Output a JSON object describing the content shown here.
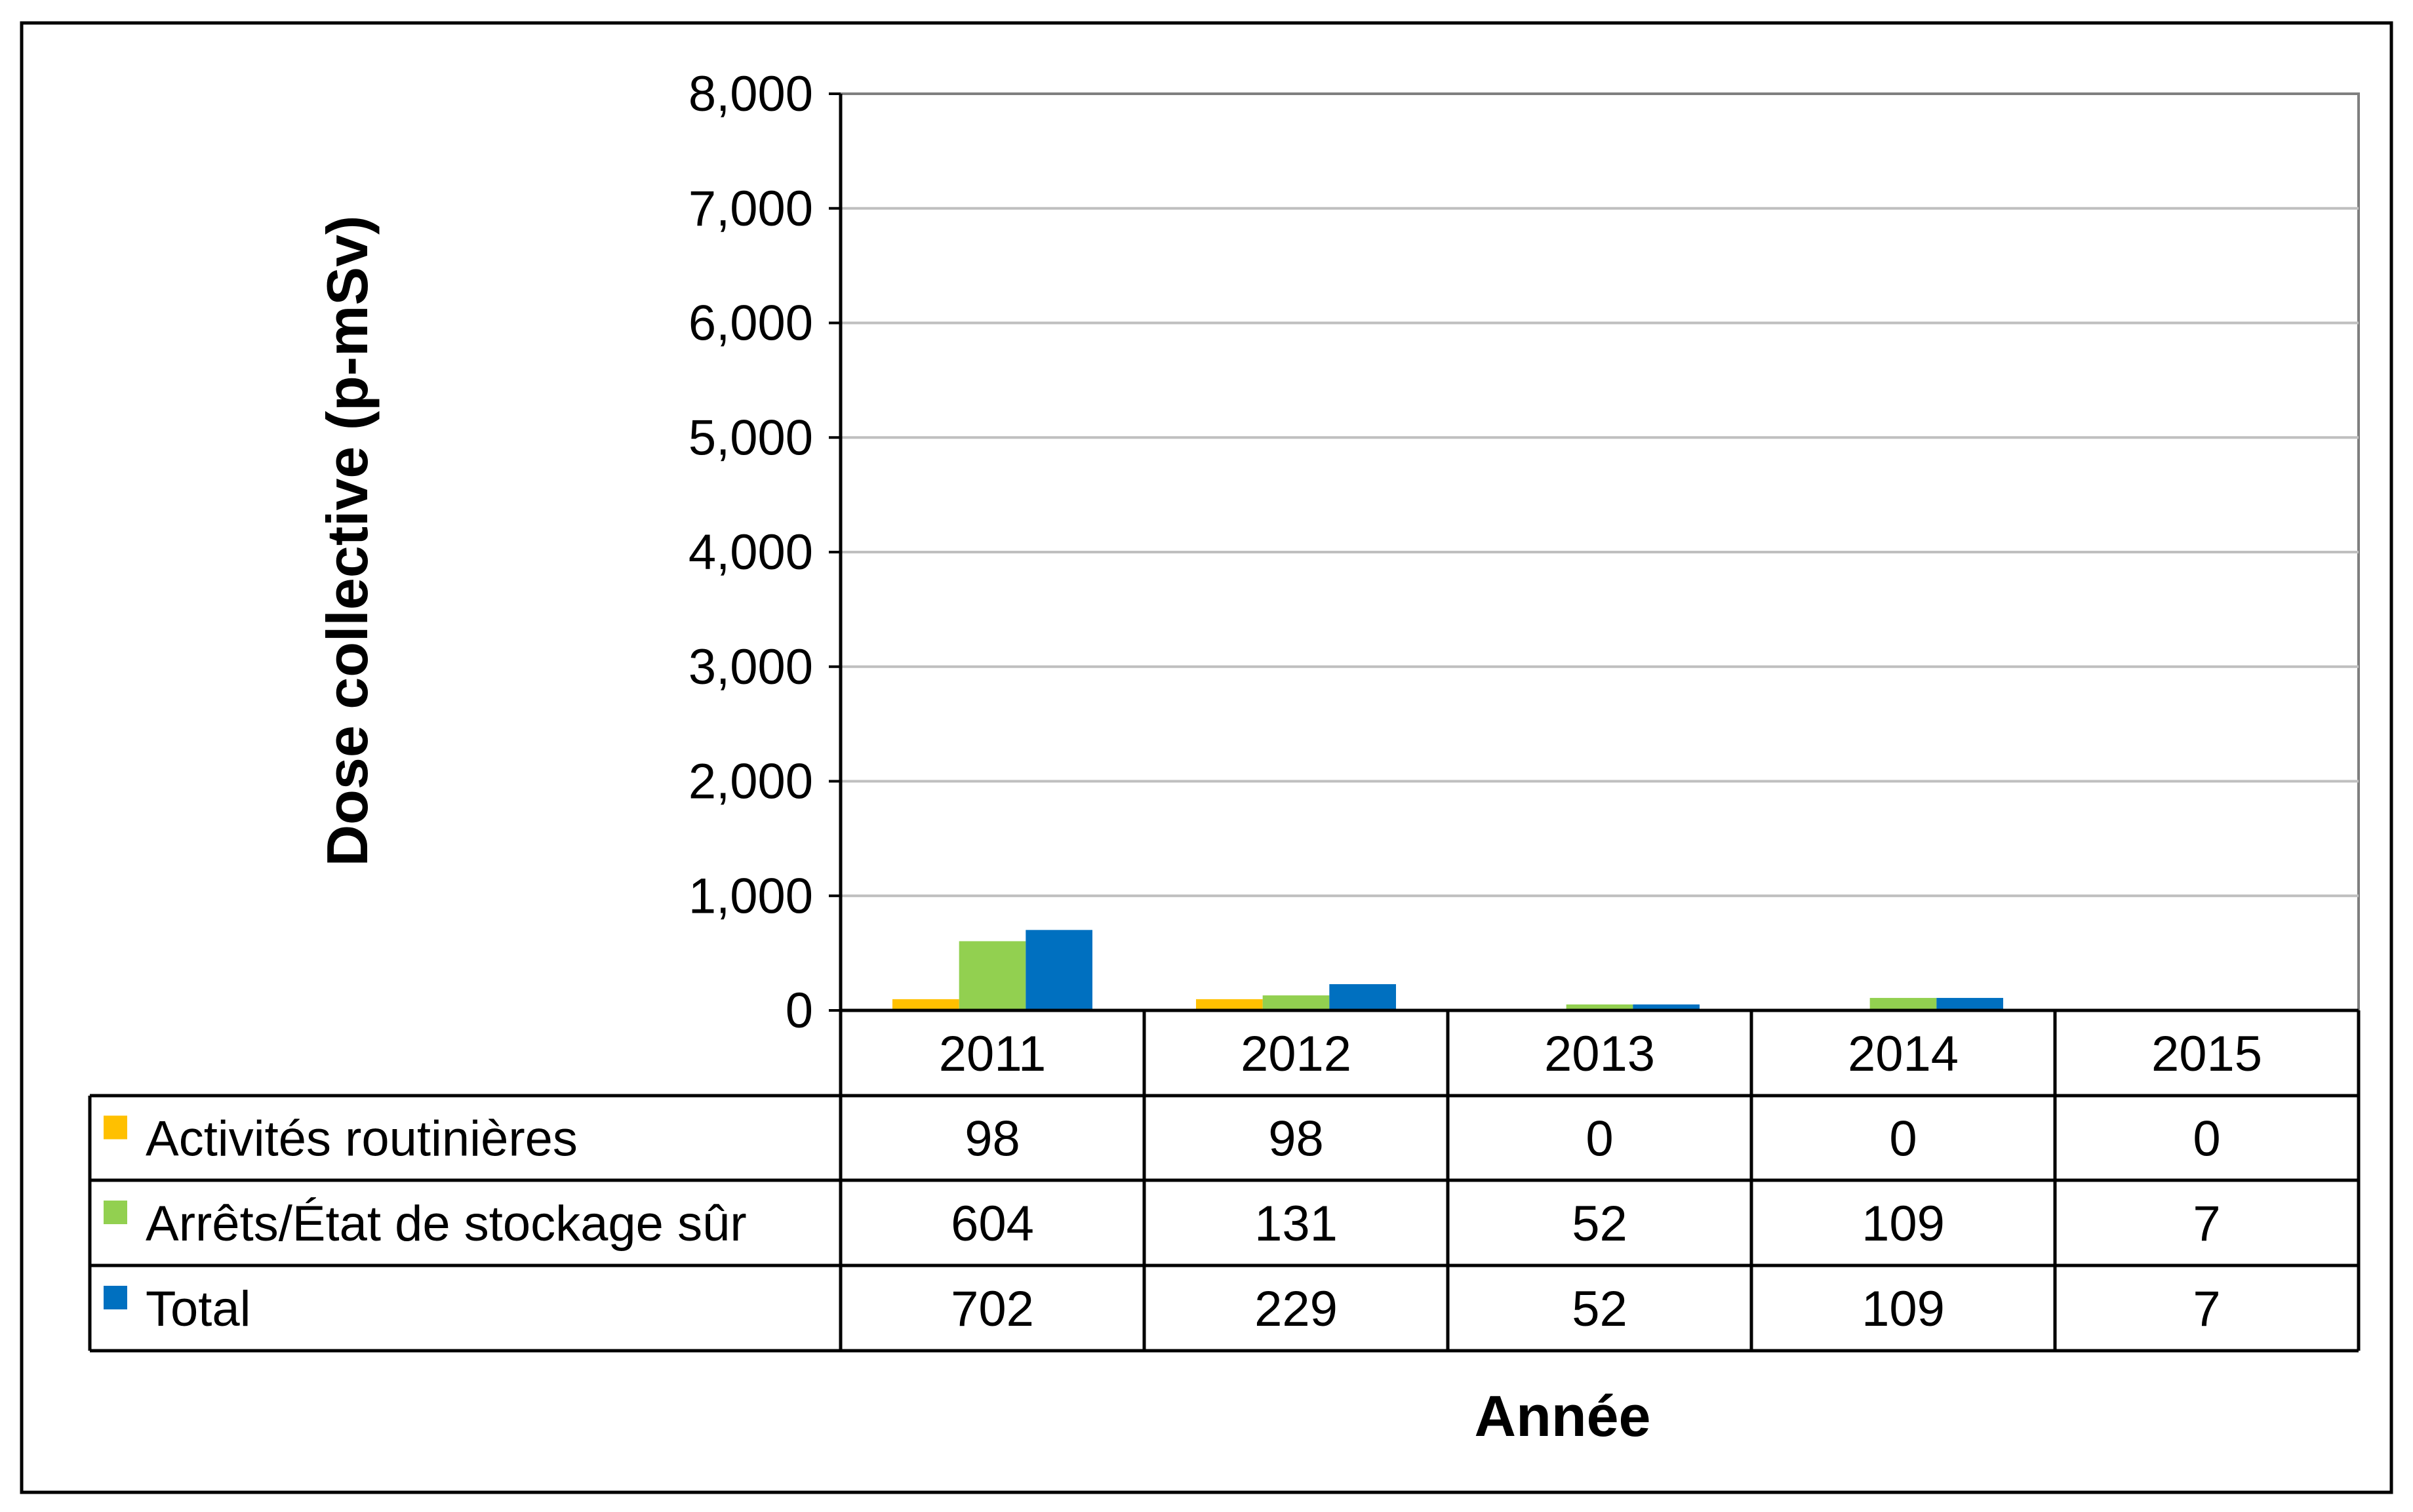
{
  "chart_data": {
    "type": "bar",
    "ylabel": "Dose collective (p-mSv)",
    "xlabel": "Année",
    "ylim": [
      0,
      8000
    ],
    "yticks": [
      0,
      1000,
      2000,
      3000,
      4000,
      5000,
      6000,
      7000,
      8000
    ],
    "ytick_labels": [
      "0",
      "1,000",
      "2,000",
      "3,000",
      "4,000",
      "5,000",
      "6,000",
      "7,000",
      "8,000"
    ],
    "categories": [
      "2011",
      "2012",
      "2013",
      "2014",
      "2015"
    ],
    "grid": true,
    "legend": "data-table",
    "series": [
      {
        "name": "Activités routinières",
        "color": "#FFC000",
        "values": [
          98,
          98,
          0,
          0,
          0
        ]
      },
      {
        "name": "Arrêts/État de stockage sûr",
        "color": "#92D050",
        "values": [
          604,
          131,
          52,
          109,
          7
        ]
      },
      {
        "name": "Total",
        "color": "#0070C0",
        "values": [
          702,
          229,
          52,
          109,
          7
        ]
      }
    ]
  }
}
